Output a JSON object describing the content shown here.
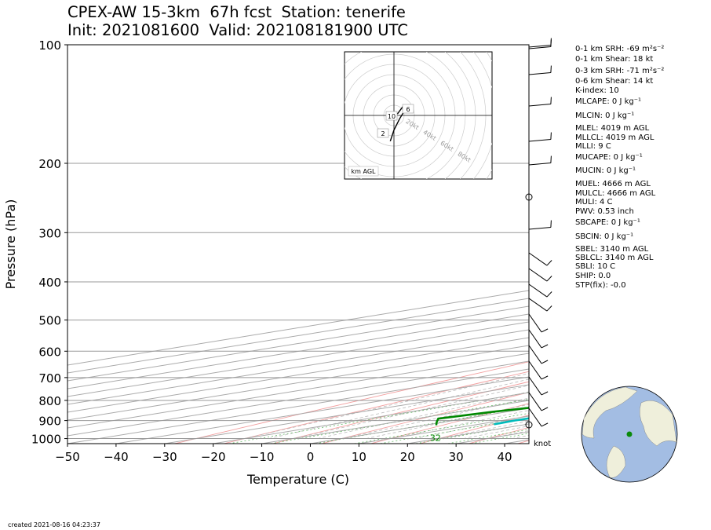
{
  "title": {
    "line1": "CPEX-AW 15-3km  67h fcst  Station: tenerife",
    "line2": "Init: 2021081600  Valid: 202108181900 UTC"
  },
  "footer": "created 2021-08-16 04:23:37",
  "wind_unit": "knot",
  "indices": [
    "0-1 km SRH: -69 m²s⁻²",
    "0-1 km Shear: 18 kt",
    "0-3 km SRH: -71 m²s⁻²",
    "0-6 km Shear: 14 kt",
    "K-index: 10",
    "MLCAPE: 0 J kg⁻¹",
    "MLCIN: 0 J kg⁻¹",
    "MLEL: 4019 m AGL",
    "MLLCL: 4019 m AGL",
    "MLLI: 9 C",
    "MUCAPE: 0 J kg⁻¹",
    "MUCIN: 0 J kg⁻¹",
    "MUEL: 4666 m AGL",
    "MULCL: 4666 m AGL",
    "MULI: 4 C",
    "PWV: 0.53 inch",
    "SBCAPE: 0 J kg⁻¹",
    "SBCIN: 0 J kg⁻¹",
    "SBEL: 3140 m AGL",
    "SBLCL: 3140 m AGL",
    "SBLI: 10 C",
    "SHIP: 0.0",
    "STP(fix): -0.0"
  ],
  "hodograph": {
    "ring_labels": [
      "20kt",
      "40kt",
      "60kt",
      "80kt"
    ],
    "height_labels": [
      "10",
      "6",
      "2"
    ],
    "legend": "km AGL",
    "points": [
      [
        -2,
        -14
      ],
      [
        0,
        -8
      ],
      [
        3,
        -2
      ],
      [
        6,
        3
      ],
      [
        5,
        5
      ],
      [
        2,
        1
      ],
      [
        -4,
        0
      ]
    ]
  },
  "chart_data": {
    "type": "skew-t",
    "xlabel": "Temperature (C)",
    "ylabel": "Pressure (hPa)",
    "xlim": [
      -50,
      45
    ],
    "ylim": [
      1030,
      100
    ],
    "y_scale": "log",
    "xticks": [
      -50,
      -40,
      -30,
      -20,
      -10,
      0,
      10,
      20,
      30,
      40
    ],
    "yticks": [
      100,
      200,
      300,
      400,
      500,
      600,
      700,
      800,
      900,
      1000
    ],
    "grid": true,
    "surface_labels": {
      "dewpoint": "32",
      "temperature": "77"
    },
    "series": [
      {
        "color": "#ee0000",
        "points": [
          [
            25.5,
            925
          ],
          [
            27.5,
            915
          ],
          [
            28.5,
            900
          ],
          [
            28.2,
            870
          ],
          [
            27,
            840
          ],
          [
            25,
            800
          ],
          [
            20.7,
            750
          ],
          [
            16.5,
            700
          ],
          [
            13.5,
            650
          ],
          [
            9.3,
            600
          ],
          [
            7.5,
            550
          ],
          [
            6.2,
            500
          ],
          [
            3.2,
            450
          ],
          [
            -0.8,
            400
          ],
          [
            -5,
            350
          ],
          [
            -9.5,
            300
          ],
          [
            -13.8,
            270
          ],
          [
            -15.8,
            250
          ],
          [
            -21,
            220
          ],
          [
            -25.3,
            200
          ],
          [
            -31.5,
            175
          ],
          [
            -38,
            150
          ],
          [
            -43.8,
            130
          ],
          [
            -51.7,
            115
          ],
          [
            -58.6,
            100
          ]
        ]
      },
      {
        "color": "#00bbbb",
        "points": [
          [
            13.2,
            920
          ],
          [
            12.6,
            900
          ],
          [
            13.1,
            870
          ],
          [
            13.6,
            830
          ],
          [
            10.5,
            770
          ],
          [
            8,
            700
          ],
          [
            5,
            630
          ],
          [
            0,
            550
          ],
          [
            -4.8,
            480
          ],
          [
            -7,
            430
          ],
          [
            -12,
            370
          ],
          [
            -16,
            320
          ],
          [
            -20,
            280
          ],
          [
            -22.5,
            250
          ],
          [
            -26,
            220
          ],
          [
            -31,
            190
          ],
          [
            -36,
            160
          ],
          [
            -42,
            130
          ],
          [
            -51.7,
            115
          ],
          [
            -58,
            100
          ]
        ]
      },
      {
        "color": "#008800",
        "points": [
          [
            2.5,
            925
          ],
          [
            -1,
            910
          ],
          [
            -5.5,
            890
          ],
          [
            -3,
            855
          ],
          [
            1.5,
            820
          ],
          [
            1.4,
            800
          ],
          [
            -1,
            780
          ],
          [
            1.2,
            750
          ],
          [
            -0.2,
            710
          ],
          [
            1.2,
            680
          ],
          [
            -0.5,
            650
          ],
          [
            1,
            615
          ],
          [
            -6.5,
            560
          ],
          [
            -13,
            510
          ],
          [
            -25,
            485
          ],
          [
            -18.5,
            445
          ],
          [
            -19,
            415
          ],
          [
            -17,
            385
          ],
          [
            -29,
            330
          ],
          [
            -58,
            310
          ],
          [
            -36,
            275
          ],
          [
            -60,
            260
          ],
          [
            -65,
            230
          ],
          [
            -60,
            200
          ],
          [
            -61,
            180
          ],
          [
            -65,
            160
          ],
          [
            -65,
            130
          ],
          [
            -65,
            100
          ]
        ]
      },
      {
        "color": "#993333",
        "points": [
          [
            -85,
            100
          ],
          [
            -51.5,
            200
          ],
          [
            -36,
            300
          ],
          [
            -26,
            400
          ],
          [
            -18.5,
            500
          ],
          [
            -3,
            600
          ]
        ]
      }
    ]
  }
}
